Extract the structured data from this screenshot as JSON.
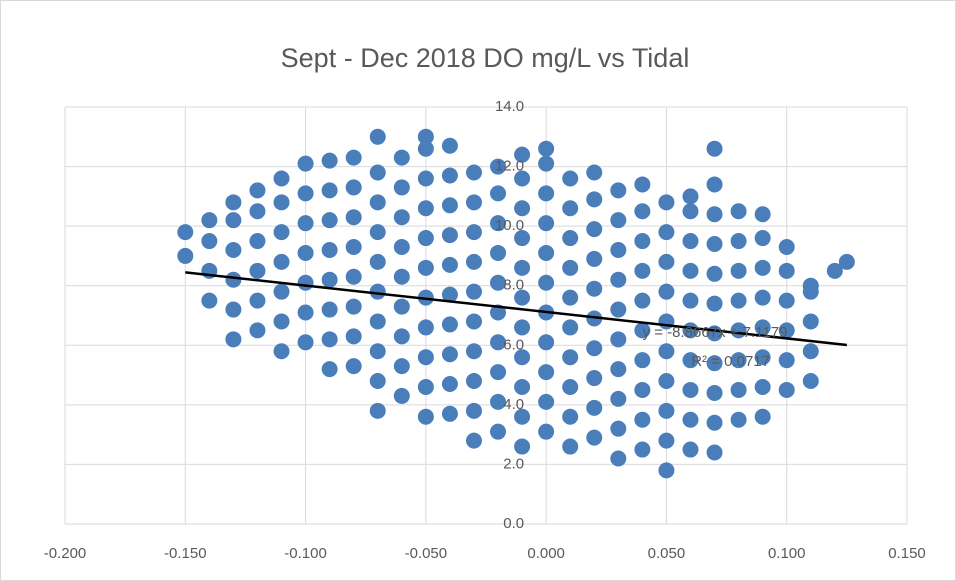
{
  "chart_data": {
    "type": "scatter",
    "title": "Sept - Dec 2018 DO mg/L vs Tidal",
    "xlim": [
      -0.2,
      0.15
    ],
    "xticks": [
      {
        "value": -0.2,
        "label": "-0.200"
      },
      {
        "value": -0.15,
        "label": "-0.150"
      },
      {
        "value": -0.1,
        "label": "-0.100"
      },
      {
        "value": -0.05,
        "label": "-0.050"
      },
      {
        "value": 0,
        "label": "0.000"
      },
      {
        "value": 0.05,
        "label": "0.050"
      },
      {
        "value": 0.1,
        "label": "0.100"
      },
      {
        "value": 0.15,
        "label": "0.150"
      }
    ],
    "ylim": [
      0,
      14
    ],
    "yticks": [
      {
        "value": 0,
        "label": "0.0"
      },
      {
        "value": 2,
        "label": "2.0"
      },
      {
        "value": 4,
        "label": "4.0"
      },
      {
        "value": 6,
        "label": "6.0"
      },
      {
        "value": 8,
        "label": "8.0"
      },
      {
        "value": 10,
        "label": "10.0"
      },
      {
        "value": 12,
        "label": "12.0"
      },
      {
        "value": 14,
        "label": "14.0"
      }
    ],
    "grid": true,
    "series": [
      {
        "color": "#4a7ebb",
        "x": [
          -0.15,
          -0.15,
          -0.14,
          -0.14,
          -0.14,
          -0.14,
          -0.13,
          -0.13,
          -0.13,
          -0.13,
          -0.13,
          -0.13,
          -0.12,
          -0.12,
          -0.12,
          -0.12,
          -0.12,
          -0.12,
          -0.11,
          -0.11,
          -0.11,
          -0.11,
          -0.11,
          -0.11,
          -0.11,
          -0.1,
          -0.1,
          -0.1,
          -0.1,
          -0.1,
          -0.1,
          -0.1,
          -0.09,
          -0.09,
          -0.09,
          -0.09,
          -0.09,
          -0.09,
          -0.09,
          -0.09,
          -0.08,
          -0.08,
          -0.08,
          -0.08,
          -0.08,
          -0.08,
          -0.08,
          -0.08,
          -0.07,
          -0.07,
          -0.07,
          -0.07,
          -0.07,
          -0.07,
          -0.07,
          -0.07,
          -0.07,
          -0.07,
          -0.06,
          -0.06,
          -0.06,
          -0.06,
          -0.06,
          -0.06,
          -0.06,
          -0.06,
          -0.06,
          -0.05,
          -0.05,
          -0.05,
          -0.05,
          -0.05,
          -0.05,
          -0.05,
          -0.05,
          -0.05,
          -0.05,
          -0.05,
          -0.04,
          -0.04,
          -0.04,
          -0.04,
          -0.04,
          -0.04,
          -0.04,
          -0.04,
          -0.04,
          -0.04,
          -0.03,
          -0.03,
          -0.03,
          -0.03,
          -0.03,
          -0.03,
          -0.03,
          -0.03,
          -0.03,
          -0.03,
          -0.02,
          -0.02,
          -0.02,
          -0.02,
          -0.02,
          -0.02,
          -0.02,
          -0.02,
          -0.02,
          -0.02,
          -0.01,
          -0.01,
          -0.01,
          -0.01,
          -0.01,
          -0.01,
          -0.01,
          -0.01,
          -0.01,
          -0.01,
          -0.01,
          0,
          0,
          0,
          0,
          0,
          0,
          0,
          0,
          0,
          0,
          0,
          0.01,
          0.01,
          0.01,
          0.01,
          0.01,
          0.01,
          0.01,
          0.01,
          0.01,
          0.01,
          0.02,
          0.02,
          0.02,
          0.02,
          0.02,
          0.02,
          0.02,
          0.02,
          0.02,
          0.02,
          0.03,
          0.03,
          0.03,
          0.03,
          0.03,
          0.03,
          0.03,
          0.03,
          0.03,
          0.03,
          0.04,
          0.04,
          0.04,
          0.04,
          0.04,
          0.04,
          0.04,
          0.04,
          0.04,
          0.04,
          0.05,
          0.05,
          0.05,
          0.05,
          0.05,
          0.05,
          0.05,
          0.05,
          0.05,
          0.05,
          0.06,
          0.06,
          0.06,
          0.06,
          0.06,
          0.06,
          0.06,
          0.06,
          0.06,
          0.06,
          0.07,
          0.07,
          0.07,
          0.07,
          0.07,
          0.07,
          0.07,
          0.07,
          0.07,
          0.07,
          0.07,
          0.08,
          0.08,
          0.08,
          0.08,
          0.08,
          0.08,
          0.08,
          0.08,
          0.09,
          0.09,
          0.09,
          0.09,
          0.09,
          0.09,
          0.09,
          0.09,
          0.1,
          0.1,
          0.1,
          0.1,
          0.1,
          0.1,
          0.11,
          0.11,
          0.11,
          0.11,
          0.11,
          0.12,
          0.125
        ],
        "values": [
          9.0,
          9.8,
          7.5,
          8.5,
          9.5,
          10.2,
          6.2,
          7.2,
          8.2,
          9.2,
          10.2,
          10.8,
          6.5,
          7.5,
          8.5,
          9.5,
          10.5,
          11.2,
          5.8,
          6.8,
          7.8,
          8.8,
          9.8,
          10.8,
          11.6,
          6.1,
          7.1,
          8.1,
          9.1,
          10.1,
          11.1,
          12.1,
          5.2,
          6.2,
          7.2,
          8.2,
          9.2,
          10.2,
          11.2,
          12.2,
          5.3,
          6.3,
          7.3,
          8.3,
          9.3,
          10.3,
          11.3,
          12.3,
          3.8,
          4.8,
          5.8,
          6.8,
          7.8,
          8.8,
          9.8,
          10.8,
          11.8,
          13.0,
          4.3,
          5.3,
          6.3,
          7.3,
          8.3,
          9.3,
          10.3,
          11.3,
          12.3,
          3.6,
          4.6,
          5.6,
          6.6,
          7.6,
          8.6,
          9.6,
          10.6,
          11.6,
          12.6,
          13.0,
          3.7,
          4.7,
          5.7,
          6.7,
          7.7,
          8.7,
          9.7,
          10.7,
          11.7,
          12.7,
          2.8,
          3.8,
          4.8,
          5.8,
          6.8,
          7.8,
          8.8,
          9.8,
          10.8,
          11.8,
          3.1,
          4.1,
          5.1,
          6.1,
          7.1,
          8.1,
          9.1,
          10.1,
          11.1,
          12.0,
          2.6,
          3.6,
          4.6,
          5.6,
          6.6,
          7.6,
          8.6,
          9.6,
          10.6,
          11.6,
          12.4,
          3.1,
          4.1,
          5.1,
          6.1,
          7.1,
          8.1,
          9.1,
          10.1,
          11.1,
          12.1,
          12.6,
          2.6,
          3.6,
          4.6,
          5.6,
          6.6,
          7.6,
          8.6,
          9.6,
          10.6,
          11.6,
          2.9,
          3.9,
          4.9,
          5.9,
          6.9,
          7.9,
          8.9,
          9.9,
          10.9,
          11.8,
          2.2,
          3.2,
          4.2,
          5.2,
          6.2,
          7.2,
          8.2,
          9.2,
          10.2,
          11.2,
          2.5,
          3.5,
          4.5,
          5.5,
          6.5,
          7.5,
          8.5,
          9.5,
          10.5,
          11.4,
          1.8,
          2.8,
          3.8,
          4.8,
          5.8,
          6.8,
          7.8,
          8.8,
          9.8,
          10.8,
          2.5,
          3.5,
          4.5,
          5.5,
          6.5,
          7.5,
          8.5,
          9.5,
          10.5,
          11.0,
          2.4,
          3.4,
          4.4,
          5.4,
          6.4,
          7.4,
          8.4,
          9.4,
          10.4,
          11.4,
          12.6,
          3.5,
          4.5,
          5.5,
          6.5,
          7.5,
          8.5,
          9.5,
          10.5,
          3.6,
          4.6,
          5.6,
          6.6,
          7.6,
          8.6,
          9.6,
          10.4,
          4.5,
          5.5,
          6.5,
          7.5,
          8.5,
          9.3,
          4.8,
          5.8,
          6.8,
          7.8,
          8.0,
          8.5,
          8.8
        ]
      }
    ],
    "trendline": {
      "slope": -8.8667,
      "intercept": 7.1179,
      "xrange": [
        -0.15,
        0.125
      ],
      "color": "#000000",
      "equation": "y = -8.8667x + 7.1179",
      "r2": "R² = 0.0717"
    }
  }
}
